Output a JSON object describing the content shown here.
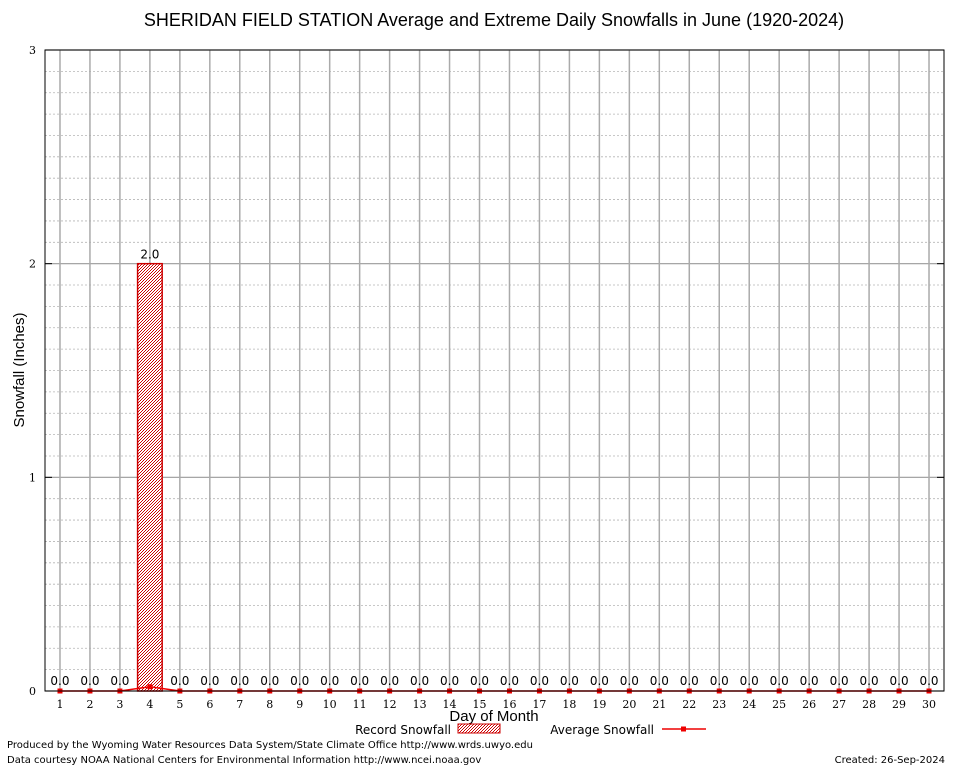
{
  "chart_data": {
    "type": "bar",
    "title": "SHERIDAN FIELD STATION Average and Extreme Daily Snowfalls in June (1920-2024)",
    "xlabel": "Day of Month",
    "ylabel": "Snowfall (Inches)",
    "ylim": [
      0,
      3
    ],
    "yticks": [
      0,
      1,
      2,
      3
    ],
    "grid": true,
    "legend_position": "bottom",
    "categories": [
      1,
      2,
      3,
      4,
      5,
      6,
      7,
      8,
      9,
      10,
      11,
      12,
      13,
      14,
      15,
      16,
      17,
      18,
      19,
      20,
      21,
      22,
      23,
      24,
      25,
      26,
      27,
      28,
      29,
      30
    ],
    "series": [
      {
        "name": "Record Snowfall",
        "kind": "bar",
        "color": "#cc0000",
        "values": [
          0,
          0,
          0,
          2.0,
          0,
          0,
          0,
          0,
          0,
          0,
          0,
          0,
          0,
          0,
          0,
          0,
          0,
          0,
          0,
          0,
          0,
          0,
          0,
          0,
          0,
          0,
          0,
          0,
          0,
          0
        ],
        "labels": [
          "0.0",
          "0.0",
          "0.0",
          "2.0",
          "0.0",
          "0.0",
          "0.0",
          "0.0",
          "0.0",
          "0.0",
          "0.0",
          "0.0",
          "0.0",
          "0.0",
          "0.0",
          "0.0",
          "0.0",
          "0.0",
          "0.0",
          "0.0",
          "0.0",
          "0.0",
          "0.0",
          "0.0",
          "0.0",
          "0.0",
          "0.0",
          "0.0",
          "0.0",
          "0.0"
        ]
      },
      {
        "name": "Average Snowfall",
        "kind": "line",
        "color": "#ee0000",
        "values": [
          0,
          0,
          0,
          0.02,
          0,
          0,
          0,
          0,
          0,
          0,
          0,
          0,
          0,
          0,
          0,
          0,
          0,
          0,
          0,
          0,
          0,
          0,
          0,
          0,
          0,
          0,
          0,
          0,
          0,
          0
        ]
      }
    ]
  },
  "footer": {
    "line1": "Produced by the Wyoming Water Resources Data System/State Climate Office http://www.wrds.uwyo.edu",
    "line2": "Data courtesy NOAA National Centers for Environmental Information http://www.ncei.noaa.gov",
    "created": "Created:  26-Sep-2024"
  }
}
